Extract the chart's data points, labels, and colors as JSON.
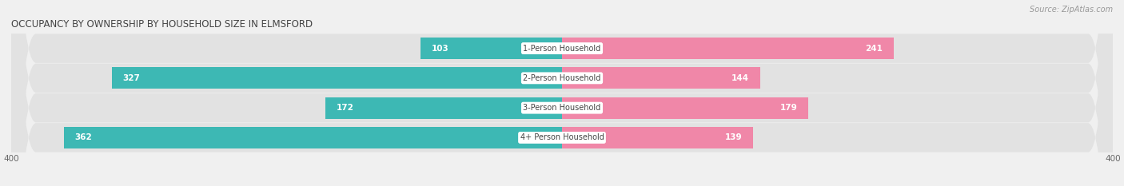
{
  "title": "OCCUPANCY BY OWNERSHIP BY HOUSEHOLD SIZE IN ELMSFORD",
  "source": "Source: ZipAtlas.com",
  "categories": [
    "1-Person Household",
    "2-Person Household",
    "3-Person Household",
    "4+ Person Household"
  ],
  "owner_values": [
    103,
    327,
    172,
    362
  ],
  "renter_values": [
    241,
    144,
    179,
    139
  ],
  "owner_color": "#3db8b4",
  "renter_color": "#f087a8",
  "background_color": "#f0f0f0",
  "bar_bg_color": "#e2e2e2",
  "xlim": [
    -400,
    400
  ],
  "bar_height": 0.72,
  "figsize": [
    14.06,
    2.33
  ],
  "dpi": 100,
  "title_fontsize": 8.5,
  "source_fontsize": 7,
  "label_fontsize": 7.5,
  "tick_fontsize": 7.5,
  "category_fontsize": 7,
  "legend_fontsize": 7.5,
  "owner_inside_threshold": 60,
  "renter_inside_threshold": 60
}
